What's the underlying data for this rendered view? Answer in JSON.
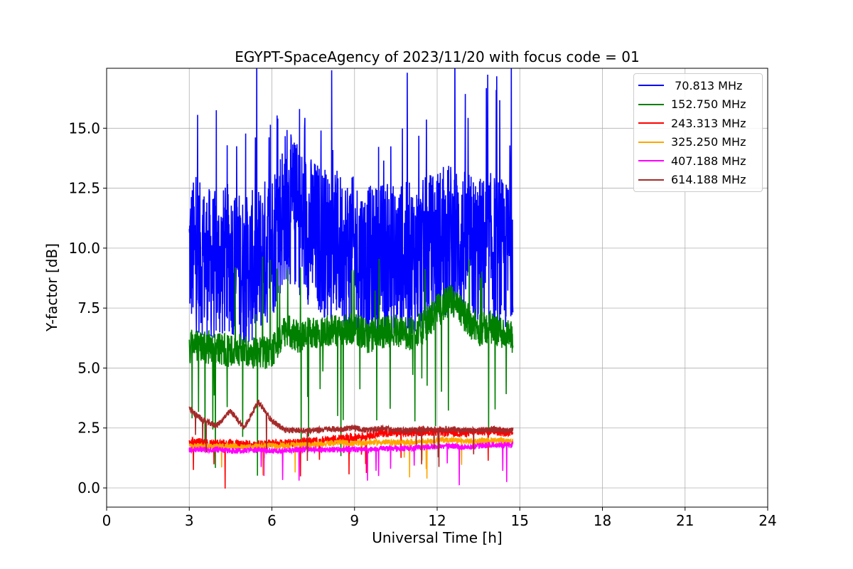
{
  "chart_data": {
    "type": "line",
    "title": "EGYPT-SpaceAgency of 2023/11/20 with focus code = 01",
    "xlabel": "Universal Time [h]",
    "ylabel": "Y-factor [dB]",
    "xlim": [
      0,
      24
    ],
    "ylim": [
      -0.8,
      17.5
    ],
    "xticks": [
      0,
      3,
      6,
      9,
      12,
      15,
      18,
      21,
      24
    ],
    "xtick_labels": [
      "0",
      "3",
      "6",
      "9",
      "12",
      "15",
      "18",
      "21",
      "24"
    ],
    "yticks": [
      0.0,
      2.5,
      5.0,
      7.5,
      10.0,
      12.5,
      15.0
    ],
    "ytick_labels": [
      "0.0",
      "2.5",
      "5.0",
      "7.5",
      "10.0",
      "12.5",
      "15.0"
    ],
    "grid": true,
    "legend_position": "top-right",
    "x": [
      3.0,
      3.5,
      4.0,
      4.5,
      5.0,
      5.5,
      6.0,
      6.5,
      7.0,
      7.5,
      8.0,
      8.5,
      9.0,
      9.5,
      10.0,
      10.5,
      11.0,
      11.5,
      12.0,
      12.5,
      13.0,
      13.5,
      14.0,
      14.5,
      14.75
    ],
    "series": [
      {
        "name": " 70.813 MHz",
        "color": "#0000ff",
        "values": [
          9.8,
          9.5,
          9.2,
          9.6,
          9.0,
          9.4,
          10.2,
          11.8,
          11.2,
          10.6,
          10.2,
          10.0,
          9.8,
          9.4,
          9.6,
          9.5,
          9.6,
          9.7,
          10.2,
          10.4,
          10.1,
          9.8,
          10.0,
          9.6,
          10.5
        ]
      },
      {
        "name": "152.750 MHz",
        "color": "#008000",
        "values": [
          5.9,
          5.9,
          5.8,
          5.7,
          5.8,
          5.6,
          5.7,
          6.6,
          6.3,
          6.5,
          6.6,
          6.5,
          6.7,
          6.3,
          6.5,
          6.6,
          6.4,
          6.7,
          7.4,
          7.8,
          7.2,
          6.6,
          6.7,
          6.4,
          6.2
        ]
      },
      {
        "name": "243.313 MHz",
        "color": "#ff0000",
        "values": [
          1.9,
          1.9,
          1.85,
          1.85,
          1.8,
          1.8,
          1.85,
          1.85,
          1.9,
          1.95,
          2.0,
          2.05,
          2.1,
          2.2,
          2.3,
          2.3,
          2.3,
          2.35,
          2.35,
          2.3,
          2.3,
          2.35,
          2.4,
          2.3,
          2.4
        ]
      },
      {
        "name": "325.250 MHz",
        "color": "#ffa500",
        "values": [
          1.75,
          1.75,
          1.75,
          1.75,
          1.7,
          1.75,
          1.75,
          1.75,
          1.8,
          1.8,
          1.85,
          1.9,
          1.85,
          1.9,
          1.9,
          1.9,
          1.9,
          1.95,
          2.0,
          2.0,
          1.95,
          1.95,
          2.0,
          1.95,
          1.9
        ]
      },
      {
        "name": "407.188 MHz",
        "color": "#ff00ff",
        "values": [
          1.6,
          1.6,
          1.6,
          1.55,
          1.55,
          1.6,
          1.55,
          1.55,
          1.6,
          1.6,
          1.6,
          1.6,
          1.6,
          1.6,
          1.65,
          1.65,
          1.65,
          1.7,
          1.75,
          1.75,
          1.7,
          1.75,
          1.8,
          1.8,
          1.8
        ]
      },
      {
        "name": "614.188 MHz",
        "color": "#a52a2a",
        "values": [
          3.3,
          2.8,
          2.6,
          3.2,
          2.5,
          3.6,
          2.8,
          2.4,
          2.4,
          2.4,
          2.45,
          2.45,
          2.5,
          2.4,
          2.5,
          2.4,
          2.4,
          2.45,
          2.45,
          2.45,
          2.4,
          2.4,
          2.45,
          2.4,
          2.4
        ]
      }
    ]
  }
}
